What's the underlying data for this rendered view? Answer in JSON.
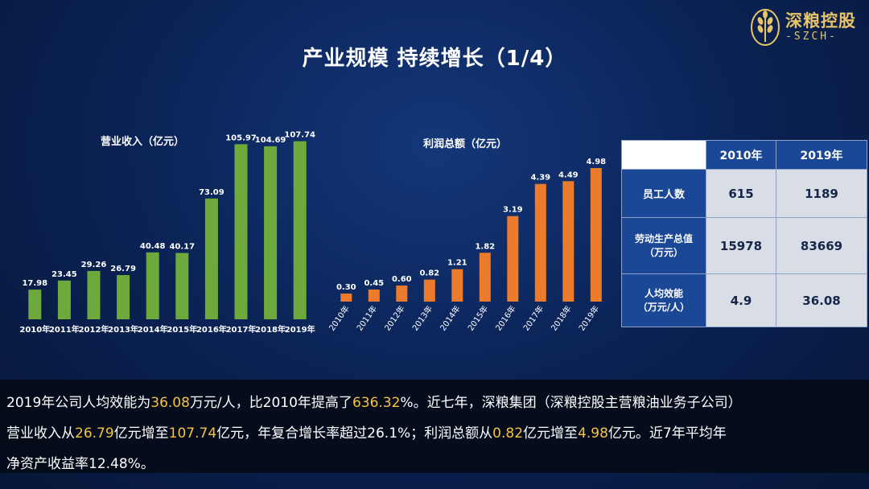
{
  "logo": {
    "name": "深粮控股",
    "sub": "-SZCH-"
  },
  "page_title": "产业规模  持续增长（1/4）",
  "colors": {
    "revenue_bar": "#6ea93c",
    "profit_bar": "#ec7c2c",
    "highlight": "#f6c342",
    "table_header": "#1a4796"
  },
  "chart_data": [
    {
      "type": "bar",
      "title": "营业收入（亿元）",
      "categories": [
        "2010年",
        "2011年",
        "2012年",
        "2013年",
        "2014年",
        "2015年",
        "2016年",
        "2017年",
        "2018年",
        "2019年"
      ],
      "values": [
        17.98,
        23.45,
        29.26,
        26.79,
        40.48,
        40.17,
        73.09,
        105.97,
        104.69,
        107.74
      ],
      "value_labels": [
        "17.98",
        "23.45",
        "29.26",
        "26.79",
        "40.48",
        "40.17",
        "73.09",
        "105.97",
        "104.69",
        "107.74"
      ],
      "ylim": [
        0,
        110
      ],
      "grid": false
    },
    {
      "type": "bar",
      "title": "利润总额（亿元）",
      "categories": [
        "2010年",
        "2011年",
        "2012年",
        "2013年",
        "2014年",
        "2015年",
        "2016年",
        "2017年",
        "2018年",
        "2019年"
      ],
      "values": [
        0.3,
        0.45,
        0.6,
        0.82,
        1.21,
        1.82,
        3.19,
        4.39,
        4.49,
        4.98
      ],
      "value_labels": [
        "0.30",
        "0.45",
        "0.60",
        "0.82",
        "1.21",
        "1.82",
        "3.19",
        "4.39",
        "4.49",
        "4.98"
      ],
      "ylim": [
        0,
        5.1
      ],
      "grid": false
    }
  ],
  "table": {
    "columns": [
      "",
      "2010年",
      "2019年"
    ],
    "rows": [
      {
        "label": "员工人数",
        "values": [
          "615",
          "1189"
        ]
      },
      {
        "label_lines": [
          "劳动生产总值",
          "（万元）"
        ],
        "values": [
          "15978",
          "83669"
        ]
      },
      {
        "label_lines": [
          "人均效能",
          "（万元/人）"
        ],
        "values": [
          "4.9",
          "36.08"
        ]
      }
    ]
  },
  "footer": {
    "line1": [
      {
        "text": "2019年公司人均效能为"
      },
      {
        "text": "36.08",
        "hl": true
      },
      {
        "text": "万元/人，比2010年提高了"
      },
      {
        "text": "636.32",
        "hl": true
      },
      {
        "text": "%。近七年，深粮集团（深粮控股主营粮油业务子公司）"
      }
    ],
    "line2": [
      {
        "text": "营业收入从"
      },
      {
        "text": "26.79",
        "hl": true
      },
      {
        "text": "亿元增至"
      },
      {
        "text": "107.74",
        "hl": true
      },
      {
        "text": "亿元，年复合增长率超过26.1%；利润总额从"
      },
      {
        "text": "0.82",
        "hl": true
      },
      {
        "text": "亿元增至"
      },
      {
        "text": "4.98",
        "hl": true
      },
      {
        "text": "亿元。近7年平均年"
      }
    ],
    "line3": [
      {
        "text": "净资产收益率12.48%。"
      }
    ]
  }
}
